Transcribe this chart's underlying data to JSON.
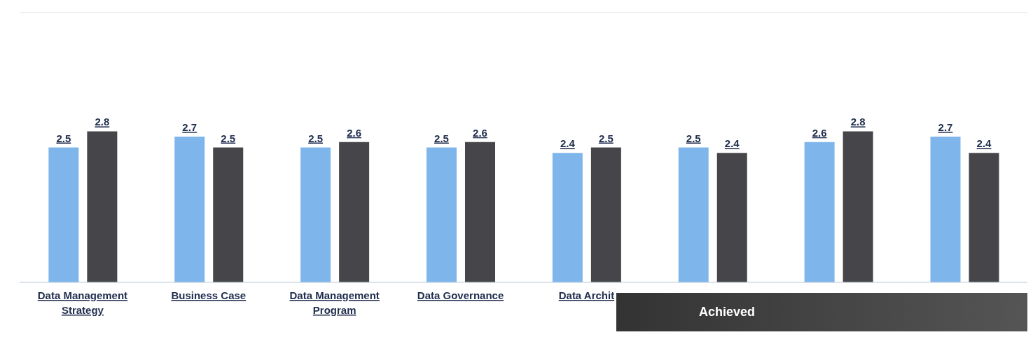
{
  "chart_data": {
    "type": "bar",
    "categories": [
      "Data Management Strategy",
      "Business Case",
      "Data Management Program",
      "Data Governance",
      "Data Archit",
      null,
      null,
      null
    ],
    "series": [
      {
        "color": "#7eb6ec",
        "values": [
          2.5,
          2.7,
          2.5,
          2.5,
          2.4,
          2.5,
          2.6,
          2.7
        ]
      },
      {
        "color": "#46464a",
        "values": [
          2.8,
          2.5,
          2.6,
          2.6,
          2.5,
          2.4,
          2.8,
          2.4
        ]
      }
    ],
    "ylim": [
      0,
      5
    ],
    "tick_labels": "x",
    "grid": "y",
    "data_labels": true,
    "annotations": [
      "Achieved"
    ]
  }
}
